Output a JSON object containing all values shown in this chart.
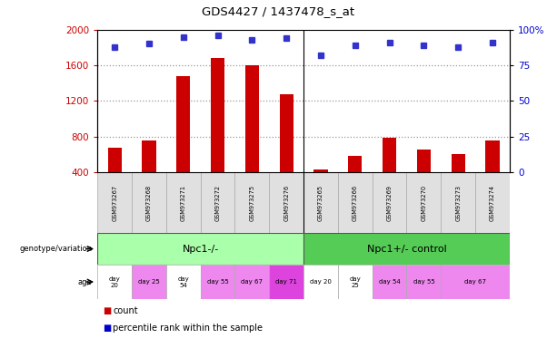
{
  "title": "GDS4427 / 1437478_s_at",
  "samples": [
    "GSM973267",
    "GSM973268",
    "GSM973271",
    "GSM973272",
    "GSM973275",
    "GSM973276",
    "GSM973265",
    "GSM973266",
    "GSM973269",
    "GSM973270",
    "GSM973273",
    "GSM973274"
  ],
  "count_values": [
    680,
    760,
    1480,
    1680,
    1600,
    1270,
    430,
    580,
    790,
    650,
    600,
    760
  ],
  "percentile_values": [
    88,
    90,
    95,
    96,
    93,
    94,
    82,
    89,
    91,
    89,
    88,
    91
  ],
  "ylim_left": [
    400,
    2000
  ],
  "ylim_right": [
    0,
    100
  ],
  "yticks_left": [
    400,
    800,
    1200,
    1600,
    2000
  ],
  "yticks_right": [
    0,
    25,
    50,
    75,
    100
  ],
  "bar_color": "#cc0000",
  "dot_color": "#3333cc",
  "genotype_groups": [
    {
      "label": "Npc1-/-",
      "start": 0,
      "end": 6,
      "color": "#aaffaa"
    },
    {
      "label": "Npc1+/- control",
      "start": 6,
      "end": 12,
      "color": "#55cc55"
    }
  ],
  "age_spans": [
    {
      "label": "day\n20",
      "start": 0,
      "end": 1,
      "color": "#ffffff"
    },
    {
      "label": "day 25",
      "start": 1,
      "end": 2,
      "color": "#ee88ee"
    },
    {
      "label": "day\n54",
      "start": 2,
      "end": 3,
      "color": "#ffffff"
    },
    {
      "label": "day 55",
      "start": 3,
      "end": 4,
      "color": "#ee88ee"
    },
    {
      "label": "day 67",
      "start": 4,
      "end": 5,
      "color": "#ee88ee"
    },
    {
      "label": "day 71",
      "start": 5,
      "end": 6,
      "color": "#dd44dd"
    },
    {
      "label": "day 20",
      "start": 6,
      "end": 7,
      "color": "#ffffff"
    },
    {
      "label": "day\n25",
      "start": 7,
      "end": 8,
      "color": "#ffffff"
    },
    {
      "label": "day 54",
      "start": 8,
      "end": 9,
      "color": "#ee88ee"
    },
    {
      "label": "day 55",
      "start": 9,
      "end": 10,
      "color": "#ee88ee"
    },
    {
      "label": "day 67",
      "start": 10,
      "end": 12,
      "color": "#ee88ee"
    }
  ],
  "background_color": "#ffffff",
  "label_color_red": "#cc0000",
  "label_color_blue": "#0000cc",
  "grid_yticks": [
    800,
    1200,
    1600
  ]
}
